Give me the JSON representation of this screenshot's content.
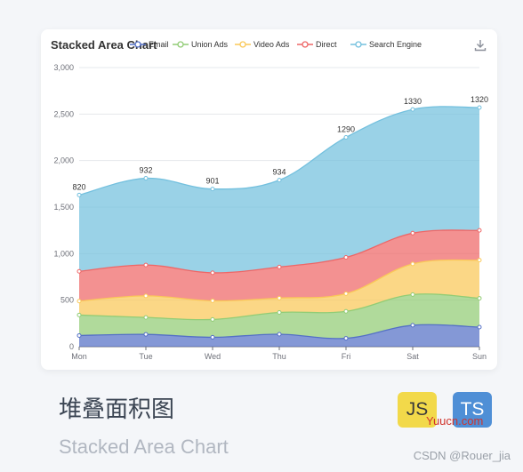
{
  "card": {
    "download_icon": "download-icon"
  },
  "chart_data": {
    "type": "area",
    "stacked": true,
    "title": "Stacked Area Chart",
    "xlabel": "",
    "ylabel": "",
    "categories": [
      "Mon",
      "Tue",
      "Wed",
      "Thu",
      "Fri",
      "Sat",
      "Sun"
    ],
    "ylim": [
      0,
      3000
    ],
    "yticks": [
      0,
      500,
      1000,
      1500,
      2000,
      2500,
      3000
    ],
    "ytick_labels": [
      "0",
      "500",
      "1,000",
      "1,500",
      "2,000",
      "2,500",
      "3,000"
    ],
    "grid": true,
    "legend_position": "top",
    "series": [
      {
        "name": "Email",
        "color": "#5470c6",
        "values": [
          120,
          132,
          101,
          134,
          90,
          230,
          210
        ]
      },
      {
        "name": "Union Ads",
        "color": "#91cc75",
        "values": [
          220,
          182,
          191,
          234,
          290,
          330,
          310
        ]
      },
      {
        "name": "Video Ads",
        "color": "#fac858",
        "values": [
          150,
          232,
          201,
          154,
          190,
          330,
          410
        ]
      },
      {
        "name": "Direct",
        "color": "#ee6666",
        "values": [
          320,
          332,
          301,
          334,
          390,
          330,
          320
        ]
      },
      {
        "name": "Search Engine",
        "color": "#73c0de",
        "values": [
          820,
          932,
          901,
          934,
          1290,
          1330,
          1320
        ]
      }
    ],
    "top_labels": [
      "820",
      "932",
      "901",
      "934",
      "1290",
      "1330",
      "1320"
    ]
  },
  "legend_labels": [
    "Email",
    "Union Ads",
    "Video Ads",
    "Direct",
    "Search Engine"
  ],
  "page": {
    "heading": "堆叠面积图",
    "subheading": "Stacked Area Chart",
    "badge_js": "JS",
    "badge_ts": "TS",
    "watermark_site": "Yuucn.com",
    "watermark_csdn": "CSDN @Rouer_jia"
  }
}
